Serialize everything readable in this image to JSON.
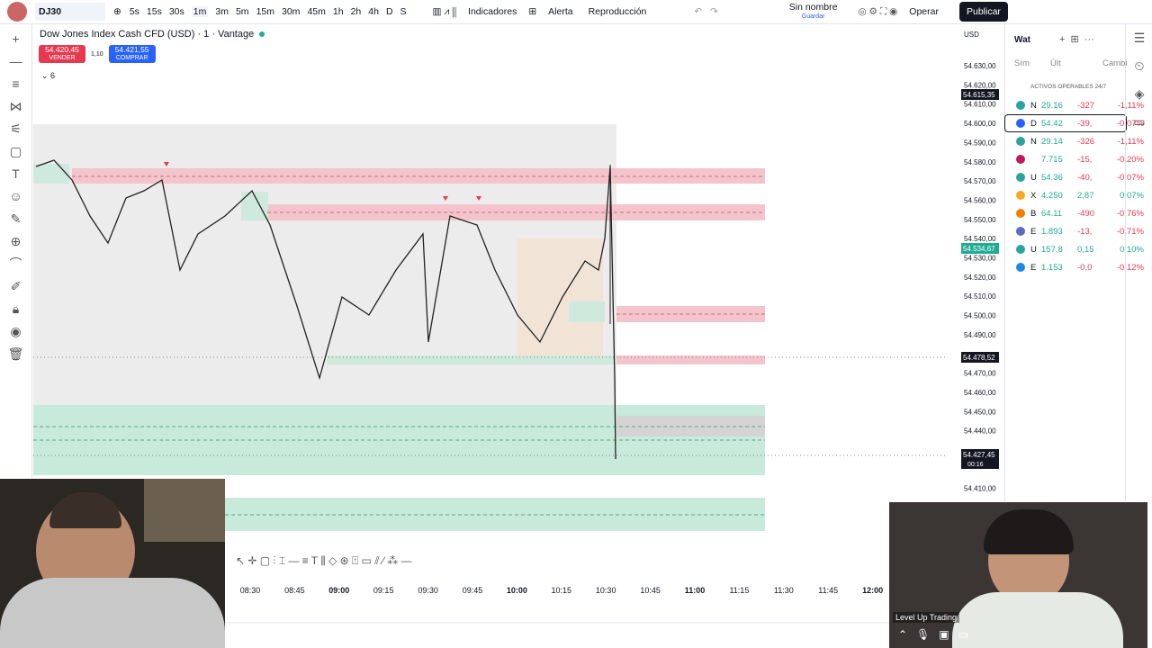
{
  "toolbar": {
    "symbol": "DJ30",
    "intervals": [
      "5s",
      "15s",
      "30s",
      "1m",
      "3m",
      "5m",
      "15m",
      "30m",
      "45m",
      "1h",
      "2h",
      "4h",
      "D",
      "S"
    ],
    "indicators": "Indicadores",
    "alert": "Alerta",
    "replay": "Reproducción",
    "layout_name": "Sin nombre",
    "layout_save": "Guardar",
    "trade": "Operar",
    "publish": "Publicar"
  },
  "chart": {
    "title": "Dow Jones Index Cash CFD (USD) · 1 · Vantage",
    "sell_price": "54.420,45",
    "sell_label": "VENDER",
    "spread": "1,10",
    "buy_price": "54.421,55",
    "buy_label": "COMPRAR",
    "indicator_count": "6",
    "currency": "USD",
    "price_labels": [
      "54.630,00",
      "54.620,00",
      "54.610,00",
      "54.600,00",
      "54.590,00",
      "54.580,00",
      "54.570,00",
      "54.560,00",
      "54.550,00",
      "54.540,00",
      "54.530,00",
      "54.520,00",
      "54.510,00",
      "54.500,00",
      "54.490,00",
      "54.470,00",
      "54.460,00",
      "54.450,00",
      "54.440,00",
      "54.410,00"
    ],
    "high_marker": "54.615,35",
    "mid_marker": "54.534,67",
    "crosshair_price": "54.478,52",
    "last_price": "54.427,45",
    "countdown": "00:16",
    "time_labels": [
      "08:30",
      "08:45",
      "09:00",
      "09:15",
      "09:30",
      "09:45",
      "10:00",
      "10:15",
      "10:30",
      "10:45",
      "11:00",
      "11:15",
      "11:30",
      "11:45",
      "12:00"
    ]
  },
  "watchlist": {
    "title": "Wat",
    "columns": [
      "Sím",
      "Últ",
      "Cambi"
    ],
    "section": "ACTIVOS OPERABLES 24/7",
    "rows": [
      [
        "N",
        "29.16",
        "-327",
        "-1,11%"
      ],
      [
        "D",
        "54.42",
        "-39,",
        "-0,07%"
      ],
      [
        "N",
        "29.14",
        "-326",
        "-1,11%"
      ],
      [
        "",
        "7.715",
        "-15,",
        "-0,20%"
      ],
      [
        "U",
        "54.36",
        "-40,",
        "-0,07%"
      ],
      [
        "X",
        "4.250",
        "2,87",
        "0,07%"
      ],
      [
        "B",
        "64.11",
        "-490",
        "-0,76%"
      ],
      [
        "E",
        "1.893",
        "-13,",
        "-0,71%"
      ],
      [
        "U",
        "157,8",
        "0,15",
        "0,10%"
      ],
      [
        "E",
        "1.153",
        "-0,0",
        "-0,12%"
      ]
    ]
  },
  "webcam": {
    "label": "Level Up Trading"
  }
}
